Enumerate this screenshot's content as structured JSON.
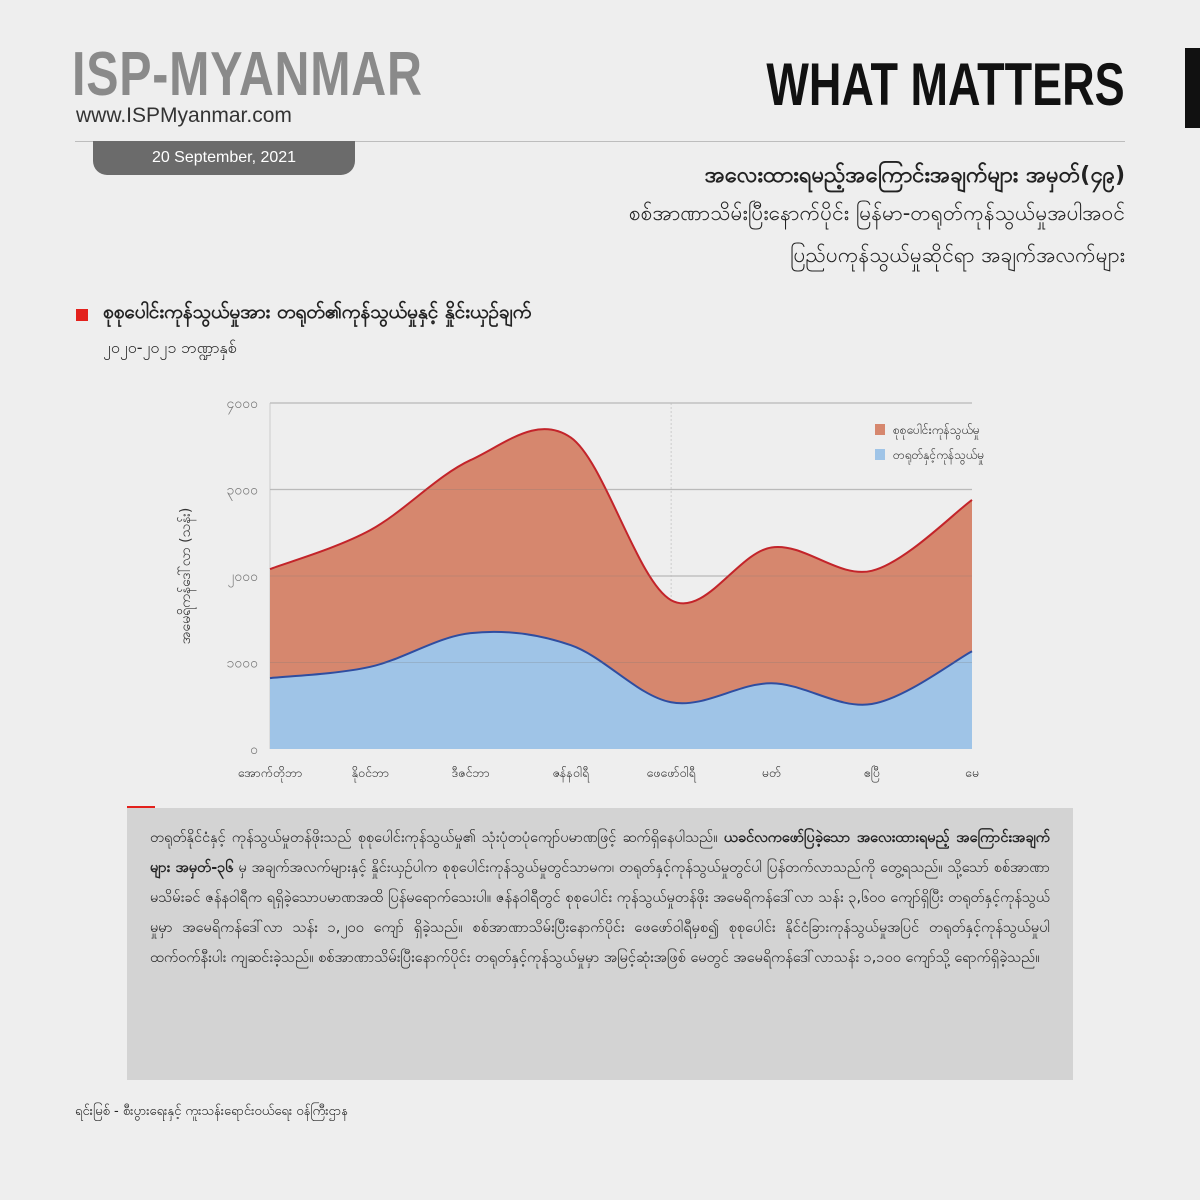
{
  "header": {
    "logo": "ISP-MYANMAR",
    "url": "www.ISPMyanmar.com",
    "date": "20 September, 2021",
    "series_name": "WHAT MATTERS"
  },
  "title": {
    "line1": "အလေးထားရမည့်အကြောင်းအချက်များ အမှတ်(၄၉)",
    "line2": "စစ်အာဏာသိမ်းပြီးနောက်ပိုင်း မြန်မာ-တရုတ်ကုန်သွယ်မှုအပါအဝင်",
    "line3": "ပြည်ပကုန်သွယ်မှုဆိုင်ရာ အချက်အလက်များ"
  },
  "chart_data": {
    "type": "area",
    "title": "စုစုပေါင်းကုန်သွယ်မှုအား တရုတ်၏ကုန်သွယ်မှုနှင့် နှိုင်းယှဉ်ချက်",
    "subtitle": "၂၀၂၀-၂၀၂၁ ဘဏ္ဍာနှစ်",
    "xlabel": "",
    "ylabel": "အမေရိကန်ဒေါ်လာ (သန်း)",
    "ylim": [
      0,
      4000
    ],
    "yticks": [
      0,
      1000,
      2000,
      3000,
      4000
    ],
    "ytick_labels": [
      "၀",
      "၁၀၀၀",
      "၂၀၀၀",
      "၃၀၀၀",
      "၄၀၀၀"
    ],
    "categories": [
      "အောက်တိုဘာ",
      "နိုဝင်ဘာ",
      "ဒီဇင်ဘာ",
      "ဇန်နဝါရီ",
      "ဖေဖော်ဝါရီ",
      "မတ်",
      "ဧပြီ",
      "မေ"
    ],
    "grid": true,
    "legend_position": "top-right",
    "series": [
      {
        "name": "စုစုပေါင်းကုန်သွယ်မှု",
        "values": [
          2080,
          2530,
          3340,
          3600,
          1720,
          2330,
          2060,
          2880
        ],
        "fill": "#d6876e",
        "line": "#c3242a"
      },
      {
        "name": "တရုတ်နှင့်ကုန်သွယ်မှု",
        "values": [
          820,
          950,
          1340,
          1200,
          540,
          760,
          520,
          1130
        ],
        "fill": "#9fc4e7",
        "line": "#2f4da0"
      }
    ]
  },
  "body": {
    "p1": "တရုတ်နိုင်ငံနှင့် ကုန်သွယ်မှုတန်ဖိုးသည် စုစုပေါင်းကုန်သွယ်မှု၏ သုံးပုံတပုံကျော်ပမာဏဖြင့် ဆက်ရှိနေပါသည်။ ",
    "p_bold": "ယခင်လကဖော်ပြခဲ့သော အလေးထားရမည့် အကြောင်းအချက်များ အမှတ်-၃၆",
    "p2": " မှ အချက်အလက်များနှင့် နှိုင်းယှဉ်ပါက စုစုပေါင်းကုန်သွယ်မှုတွင်သာမက၊ တရုတ်နှင့်ကုန်သွယ်မှုတွင်ပါ ပြန်တက်လာသည်ကို တွေ့ရသည်။ သို့သော် စစ်အာဏာမသိမ်းခင် ဇန်နဝါရီက ရရှိခဲ့သောပမာဏအထိ ပြန်မရောက်သေးပါ။ ဇန်နဝါရီတွင် စုစုပေါင်း ကုန်သွယ်မှုတန်ဖိုး အမေရိကန်ဒေါ်လာ သန်း ၃,၆၀၀ ကျော်ရှိပြီး တရုတ်နှင့်ကုန်သွယ်မှုမှာ အမေရိကန်ဒေါ်လာ သန်း ၁,၂၀၀ ကျော် ရှိခဲ့သည်။ စစ်အာဏာသိမ်းပြီးနောက်ပိုင်း ဖေဖော်ဝါရီမှစ၍ စုစုပေါင်း နိုင်ငံခြားကုန်သွယ်မှုအပြင် တရုတ်နှင့်ကုန်သွယ်မှုပါ ထက်ဝက်နီးပါး ကျဆင်းခဲ့သည်။ စစ်အာဏာသိမ်းပြီးနောက်ပိုင်း တရုတ်နှင့်ကုန်သွယ်မှုမှာ အမြင့်ဆုံးအဖြစ် မေတွင် အမေရိကန်ဒေါ်လာသန်း ၁,၁၀၀ ကျော်သို့ ရောက်ရှိခဲ့သည်။"
  },
  "source": "ရင်းမြစ် -    စီးပွားရေးနှင့် ကူးသန်းရောင်းဝယ်ရေး ဝန်ကြီးဌာန"
}
